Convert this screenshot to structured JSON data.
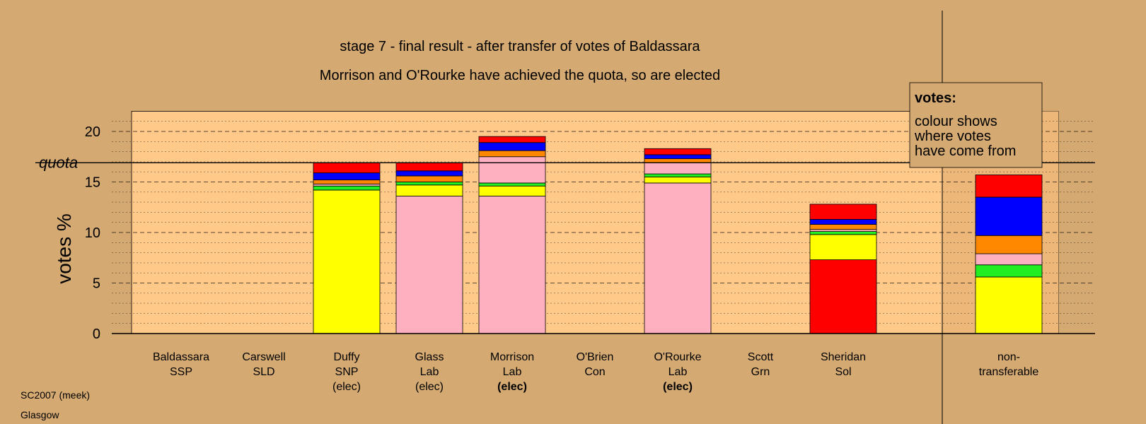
{
  "chart_data": {
    "type": "bar",
    "title": "stage 7 - final result - after transfer of votes of Baldassara",
    "subtitle": "Morrison and O'Rourke have achieved the quota, so are elected",
    "xlabel": "",
    "ylabel": "votes %",
    "ylim": [
      0,
      22
    ],
    "yticks": [
      0,
      5,
      10,
      15,
      20
    ],
    "quota": 16.9,
    "quota_label": "quota",
    "grid": true,
    "legend": {
      "title": "votes:",
      "lines": [
        "colour shows",
        "where votes",
        "have come from"
      ],
      "position": "top-right"
    },
    "colors": {
      "SNP": "#ffff00",
      "Grn": "#22ee22",
      "Lab": "#ffb0c0",
      "LD": "#ff8800",
      "Con": "#0000ff",
      "Sol": "#ff0000"
    },
    "categories": [
      {
        "name": "Baldassara",
        "party": "SSP",
        "status": "",
        "status_bold": false,
        "segments": []
      },
      {
        "name": "Carswell",
        "party": "SLD",
        "status": "",
        "status_bold": false,
        "segments": []
      },
      {
        "name": "Duffy",
        "party": "SNP",
        "status": "(elec)",
        "status_bold": false,
        "segments": [
          {
            "source": "SNP",
            "value": 14.2
          },
          {
            "source": "Grn",
            "value": 0.4
          },
          {
            "source": "Lab",
            "value": 0.2
          },
          {
            "source": "LD",
            "value": 0.4
          },
          {
            "source": "Con",
            "value": 0.7
          },
          {
            "source": "Sol",
            "value": 1.0
          }
        ]
      },
      {
        "name": "Glass",
        "party": "Lab",
        "status": "(elec)",
        "status_bold": false,
        "segments": [
          {
            "source": "Lab",
            "value": 13.6
          },
          {
            "source": "SNP",
            "value": 1.1
          },
          {
            "source": "Grn",
            "value": 0.3
          },
          {
            "source": "LD",
            "value": 0.6
          },
          {
            "source": "Con",
            "value": 0.5
          },
          {
            "source": "Sol",
            "value": 0.8
          }
        ]
      },
      {
        "name": "Morrison",
        "party": "Lab",
        "status": "(elec)",
        "status_bold": true,
        "segments": [
          {
            "source": "Lab",
            "value": 13.6
          },
          {
            "source": "SNP",
            "value": 1.0
          },
          {
            "source": "Grn",
            "value": 0.3
          },
          {
            "source": "Lab",
            "value": 2.6
          },
          {
            "source": "LD",
            "value": 0.6
          },
          {
            "source": "Con",
            "value": 0.8
          },
          {
            "source": "Sol",
            "value": 0.6
          }
        ]
      },
      {
        "name": "O'Brien",
        "party": "Con",
        "status": "",
        "status_bold": false,
        "segments": []
      },
      {
        "name": "O'Rourke",
        "party": "Lab",
        "status": "(elec)",
        "status_bold": true,
        "segments": [
          {
            "source": "Lab",
            "value": 14.9
          },
          {
            "source": "SNP",
            "value": 0.6
          },
          {
            "source": "Grn",
            "value": 0.3
          },
          {
            "source": "Lab",
            "value": 1.1
          },
          {
            "source": "LD",
            "value": 0.4
          },
          {
            "source": "Con",
            "value": 0.4
          },
          {
            "source": "Sol",
            "value": 0.6
          }
        ]
      },
      {
        "name": "Scott",
        "party": "Grn",
        "status": "",
        "status_bold": false,
        "segments": []
      },
      {
        "name": "Sheridan",
        "party": "Sol",
        "status": "",
        "status_bold": false,
        "segments": [
          {
            "source": "Sol",
            "value": 7.3
          },
          {
            "source": "SNP",
            "value": 2.5
          },
          {
            "source": "Grn",
            "value": 0.3
          },
          {
            "source": "Lab",
            "value": 0.2
          },
          {
            "source": "LD",
            "value": 0.5
          },
          {
            "source": "Con",
            "value": 0.5
          },
          {
            "source": "Sol",
            "value": 1.5
          }
        ]
      }
    ],
    "non_transferable": {
      "label_line1": "non-",
      "label_line2": "transferable",
      "segments": [
        {
          "source": "SNP",
          "value": 5.6
        },
        {
          "source": "Grn",
          "value": 1.2
        },
        {
          "source": "Lab",
          "value": 1.1
        },
        {
          "source": "LD",
          "value": 1.8
        },
        {
          "source": "Con",
          "value": 3.8
        },
        {
          "source": "Sol",
          "value": 2.2
        }
      ]
    }
  },
  "footer": {
    "line1": "SC2007 (meek)",
    "line2": "Glasgow"
  }
}
